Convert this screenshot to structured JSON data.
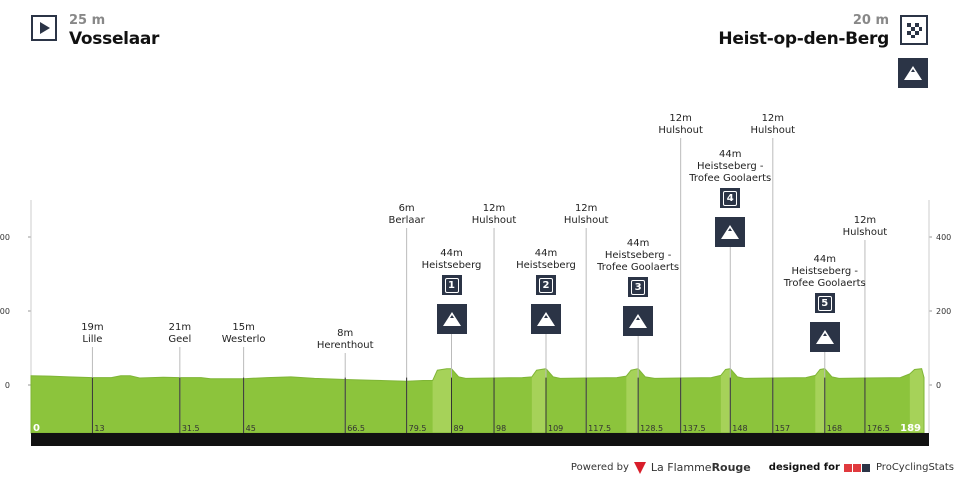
{
  "start": {
    "altitude": "25 m",
    "city": "Vosselaar",
    "icon": "start-play-icon"
  },
  "finish": {
    "altitude": "20 m",
    "city": "Heist-op-den-Berg",
    "icon": "checkered-flag-icon",
    "extra_icon": "mountain-finish-icon"
  },
  "colors": {
    "profile": "#8cc43c",
    "climb": "#a9d45c",
    "bar": "#111111",
    "badge": "#2b3446"
  },
  "footer": {
    "powered": "Powered by",
    "flamme_a": "La Flamme",
    "flamme_b": "Rouge",
    "designed": "designed for",
    "pcs": "ProCyclingStats"
  },
  "chart_data": {
    "type": "area",
    "ylim": [
      -130,
      500
    ],
    "xlim": [
      0,
      189
    ],
    "yticks": [
      "400",
      "200",
      "0"
    ],
    "ytick_values": [
      400,
      200,
      0
    ],
    "km_labels": [
      "0",
      "13",
      "31.5",
      "45",
      "66.5",
      "79.5",
      "89",
      "98",
      "109",
      "117.5",
      "128.5",
      "137.5",
      "148",
      "157",
      "168",
      "176.5",
      "189"
    ],
    "km_values": [
      0,
      13,
      31.5,
      45,
      66.5,
      79.5,
      89,
      98,
      109,
      117.5,
      128.5,
      137.5,
      148,
      157,
      168,
      176.5,
      189
    ],
    "profile": [
      [
        0,
        25
      ],
      [
        4,
        24
      ],
      [
        8,
        22
      ],
      [
        13,
        20
      ],
      [
        17,
        20
      ],
      [
        19,
        25
      ],
      [
        21,
        25
      ],
      [
        23,
        19
      ],
      [
        28,
        21
      ],
      [
        31.5,
        20
      ],
      [
        36,
        20
      ],
      [
        38,
        17
      ],
      [
        45,
        17
      ],
      [
        50,
        20
      ],
      [
        55,
        22
      ],
      [
        60,
        18
      ],
      [
        66.5,
        15
      ],
      [
        72,
        13
      ],
      [
        79.5,
        10
      ],
      [
        83,
        12
      ],
      [
        85,
        12
      ],
      [
        86,
        40
      ],
      [
        88,
        44
      ],
      [
        89,
        44
      ],
      [
        90.5,
        22
      ],
      [
        92,
        18
      ],
      [
        98,
        19
      ],
      [
        104,
        20
      ],
      [
        106,
        22
      ],
      [
        107,
        40
      ],
      [
        109,
        44
      ],
      [
        110.5,
        22
      ],
      [
        112,
        18
      ],
      [
        117.5,
        19
      ],
      [
        124,
        20
      ],
      [
        126,
        24
      ],
      [
        127,
        40
      ],
      [
        128.5,
        44
      ],
      [
        130,
        22
      ],
      [
        132,
        18
      ],
      [
        137.5,
        19
      ],
      [
        144,
        20
      ],
      [
        146,
        26
      ],
      [
        147,
        42
      ],
      [
        148,
        44
      ],
      [
        149.5,
        22
      ],
      [
        151,
        18
      ],
      [
        157,
        19
      ],
      [
        164,
        20
      ],
      [
        166,
        26
      ],
      [
        167,
        42
      ],
      [
        168,
        44
      ],
      [
        169.5,
        22
      ],
      [
        171,
        18
      ],
      [
        176.5,
        19
      ],
      [
        184,
        20
      ],
      [
        186,
        30
      ],
      [
        187,
        42
      ],
      [
        188.5,
        44
      ],
      [
        189,
        20
      ]
    ],
    "climb_segments": [
      [
        85,
        89
      ],
      [
        106,
        109
      ],
      [
        126,
        128.5
      ],
      [
        146,
        148
      ],
      [
        166,
        168
      ],
      [
        186,
        189
      ]
    ],
    "waypoints": [
      {
        "km": 13,
        "alt": "19m",
        "name": "Lille"
      },
      {
        "km": 31.5,
        "alt": "21m",
        "name": "Geel"
      },
      {
        "km": 45,
        "alt": "15m",
        "name": "Westerlo"
      },
      {
        "km": 66.5,
        "alt": "8m",
        "name": "Herenthout"
      },
      {
        "km": 79.5,
        "alt": "6m",
        "name": "Berlaar"
      },
      {
        "km": 98,
        "alt": "12m",
        "name": "Hulshout"
      },
      {
        "km": 117.5,
        "alt": "12m",
        "name": "Hulshout"
      },
      {
        "km": 137.5,
        "alt": "12m",
        "name": "Hulshout"
      },
      {
        "km": 157,
        "alt": "12m",
        "name": "Hulshout"
      },
      {
        "km": 176.5,
        "alt": "12m",
        "name": "Hulshout"
      }
    ],
    "climbs": [
      {
        "km": 89,
        "alt": "44m",
        "name": "Heistseberg",
        "name2": "",
        "num": "1"
      },
      {
        "km": 109,
        "alt": "44m",
        "name": "Heistseberg",
        "name2": "",
        "num": "2"
      },
      {
        "km": 128.5,
        "alt": "44m",
        "name": "Heistseberg -",
        "name2": "Trofee Goolaerts",
        "num": "3"
      },
      {
        "km": 148,
        "alt": "44m",
        "name": "Heistseberg -",
        "name2": "Trofee Goolaerts",
        "num": "4"
      },
      {
        "km": 168,
        "alt": "44m",
        "name": "Heistseberg -",
        "name2": "Trofee Goolaerts",
        "num": "5"
      }
    ]
  }
}
